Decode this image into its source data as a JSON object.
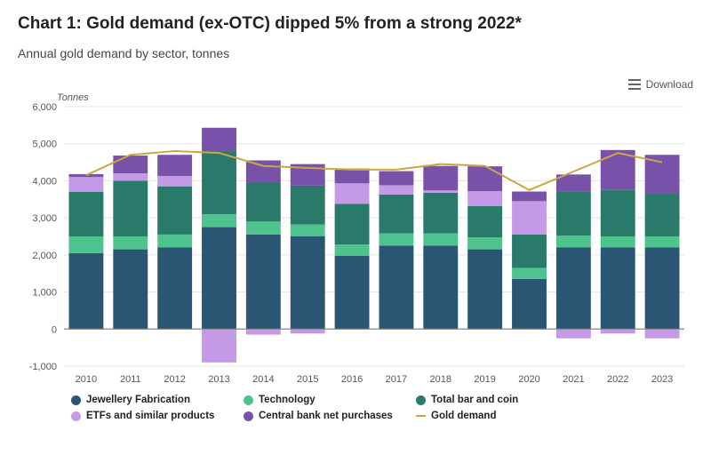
{
  "header": {
    "title": "Chart 1: Gold demand (ex-OTC) dipped 5% from a strong 2022*",
    "subtitle": "Annual gold demand by sector, tonnes",
    "download_label": "Download"
  },
  "chart": {
    "type": "stacked-bar-with-line",
    "y_axis_title": "Tonnes",
    "categories": [
      "2010",
      "2011",
      "2012",
      "2013",
      "2014",
      "2015",
      "2016",
      "2017",
      "2018",
      "2019",
      "2020",
      "2021",
      "2022",
      "2023"
    ],
    "ylim": [
      -1000,
      6000
    ],
    "ytick_step": 1000,
    "background_color": "#ffffff",
    "grid_color": "#e5e5e5",
    "axis_label_fontsize": 11,
    "bar_width_ratio": 0.78,
    "series": [
      {
        "key": "jewellery",
        "label": "Jewellery Fabrication",
        "color": "#2a5674",
        "values": [
          2050,
          2150,
          2200,
          2750,
          2550,
          2500,
          1980,
          2250,
          2250,
          2150,
          1350,
          2200,
          2200,
          2200
        ]
      },
      {
        "key": "technology",
        "label": "Technology",
        "color": "#4fc38e",
        "values": [
          450,
          350,
          350,
          350,
          350,
          320,
          300,
          330,
          330,
          320,
          300,
          320,
          300,
          300
        ]
      },
      {
        "key": "bar_coin",
        "label": "Total bar and coin",
        "color": "#2a7a6b",
        "values": [
          1200,
          1500,
          1300,
          1700,
          1050,
          1050,
          1100,
          1050,
          1100,
          850,
          900,
          1200,
          1250,
          1150
        ]
      },
      {
        "key": "etfs",
        "label": "ETFs and similar products",
        "color": "#c49ae6",
        "values": [
          400,
          200,
          280,
          -900,
          -150,
          -120,
          550,
          250,
          60,
          400,
          900,
          -250,
          -120,
          -250
        ]
      },
      {
        "key": "central_bank",
        "label": "Central bank net purchases",
        "color": "#7851a9",
        "values": [
          80,
          480,
          570,
          630,
          600,
          580,
          400,
          380,
          660,
          670,
          260,
          450,
          1080,
          1050
        ]
      }
    ],
    "line_series": {
      "key": "gold_demand",
      "label": "Gold demand",
      "color": "#c9a745",
      "values": [
        4150,
        4700,
        4800,
        4750,
        4400,
        4350,
        4300,
        4300,
        4450,
        4400,
        3750,
        4250,
        4750,
        4500
      ]
    }
  },
  "legend_order": [
    "jewellery",
    "technology",
    "bar_coin",
    "etfs",
    "central_bank",
    "gold_demand"
  ]
}
